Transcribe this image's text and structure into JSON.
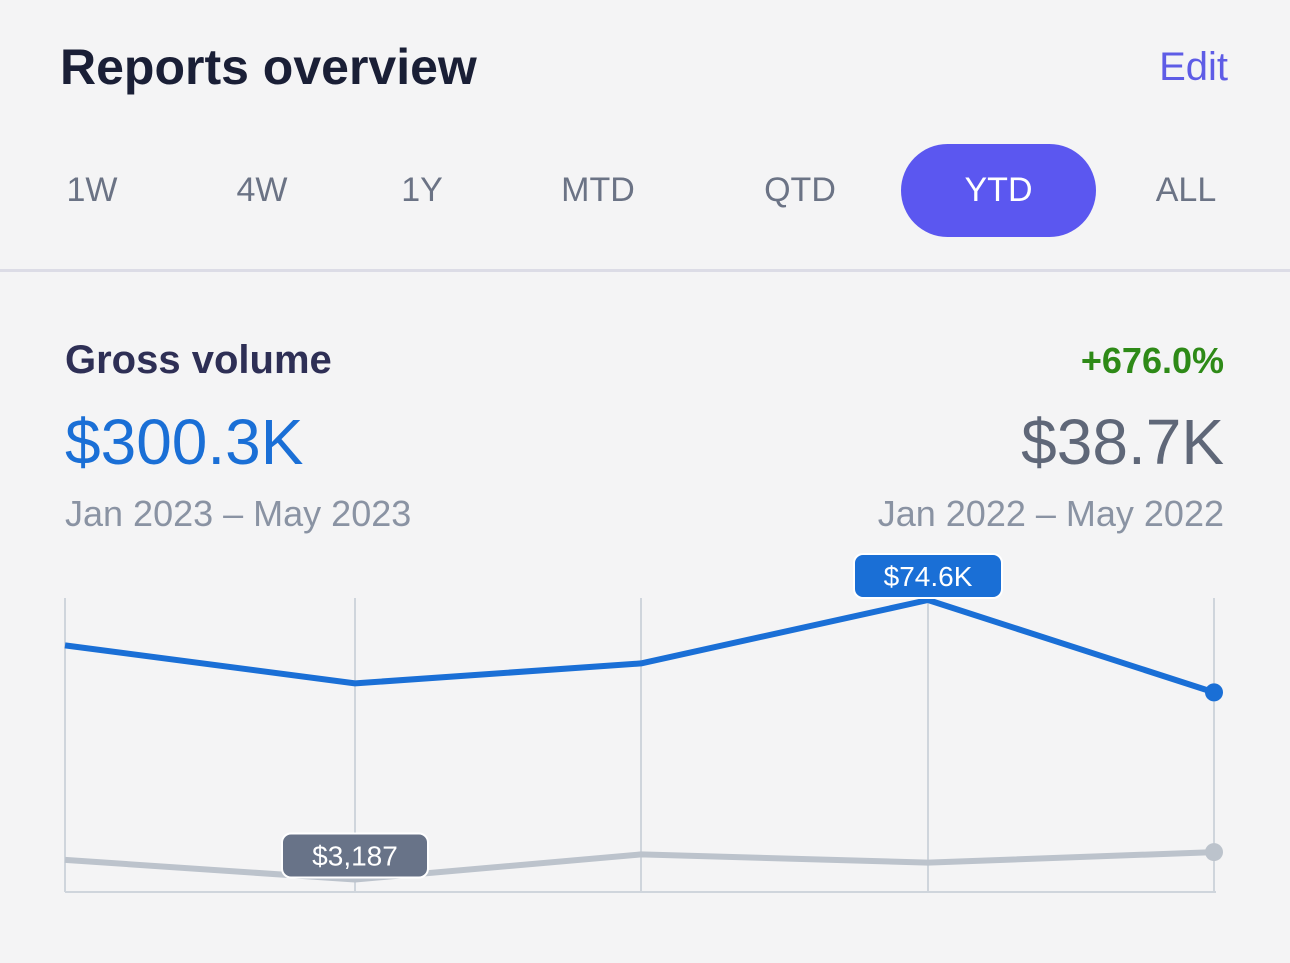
{
  "header": {
    "title": "Reports overview",
    "edit_label": "Edit"
  },
  "tabs": [
    {
      "label": "1W",
      "active": false
    },
    {
      "label": "4W",
      "active": false
    },
    {
      "label": "1Y",
      "active": false
    },
    {
      "label": "MTD",
      "active": false
    },
    {
      "label": "QTD",
      "active": false
    },
    {
      "label": "YTD",
      "active": true
    },
    {
      "label": "ALL",
      "active": false
    }
  ],
  "metric": {
    "name": "Gross volume",
    "change": "+676.0%",
    "current_value": "$300.3K",
    "previous_value": "$38.7K",
    "current_range": "Jan 2023 – May 2023",
    "previous_range": "Jan 2022 – May 2022"
  },
  "colors": {
    "accent": "#5b57f0",
    "current": "#1a6fd6",
    "previous": "#bcc3cc",
    "positive": "#2e8a17"
  },
  "chart_data": {
    "type": "line",
    "grid": "vertical",
    "series": [
      {
        "values": [
          63000,
          53300,
          58400,
          74600,
          51000
        ],
        "color": "#1a6fd6",
        "label": "$74.6K",
        "label_index": 3
      },
      {
        "values": [
          8200,
          3187,
          9600,
          7500,
          10200
        ],
        "color": "#bcc3cc",
        "label": "$3,187",
        "label_index": 1
      }
    ]
  }
}
